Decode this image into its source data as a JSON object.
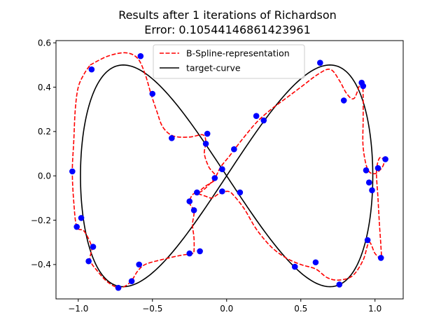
{
  "chart_data": {
    "type": "line",
    "title_line1": "Results after 1 iterations of Richardson",
    "title_line2": "Error: 0.10544146861423961",
    "xlabel": "",
    "ylabel": "",
    "xlim": [
      -1.15,
      1.19
    ],
    "ylim": [
      -0.555,
      0.61
    ],
    "x_ticks": [
      -1.0,
      -0.5,
      0.0,
      0.5,
      1.0
    ],
    "x_tick_labels": [
      "−1.0",
      "−0.5",
      "0.0",
      "0.5",
      "1.0"
    ],
    "y_ticks": [
      -0.4,
      -0.2,
      0.0,
      0.2,
      0.4,
      0.6
    ],
    "y_tick_labels": [
      "−0.4",
      "−0.2",
      "0.0",
      "0.2",
      "0.4",
      "0.6"
    ],
    "grid": false,
    "legend_position": "top-center",
    "colors": {
      "spline": "#ff0000",
      "target": "#000000",
      "points": "#0000ff"
    },
    "series": [
      {
        "name": "B-Spline-representation",
        "style": "dashed",
        "points": [
          [
            -0.92,
            0.5
          ],
          [
            -0.8,
            0.54
          ],
          [
            -0.68,
            0.555
          ],
          [
            -0.6,
            0.53
          ],
          [
            -0.55,
            0.46
          ],
          [
            -0.51,
            0.37
          ],
          [
            -0.47,
            0.29
          ],
          [
            -0.43,
            0.22
          ],
          [
            -0.36,
            0.18
          ],
          [
            -0.25,
            0.175
          ],
          [
            -0.16,
            0.185
          ],
          [
            -0.14,
            0.15
          ],
          [
            -0.15,
            0.1
          ],
          [
            -0.12,
            0.04
          ],
          [
            -0.07,
            -0.01
          ],
          [
            -0.15,
            -0.05
          ],
          [
            -0.2,
            -0.08
          ],
          [
            -0.15,
            -0.06
          ],
          [
            -0.08,
            -0.01
          ],
          [
            -0.04,
            0.04
          ],
          [
            0.02,
            0.09
          ],
          [
            0.1,
            0.16
          ],
          [
            0.2,
            0.24
          ],
          [
            0.3,
            0.3
          ],
          [
            0.4,
            0.35
          ],
          [
            0.5,
            0.4
          ],
          [
            0.62,
            0.46
          ],
          [
            0.7,
            0.48
          ],
          [
            0.76,
            0.43
          ],
          [
            0.81,
            0.37
          ],
          [
            0.86,
            0.35
          ],
          [
            0.91,
            0.43
          ],
          [
            0.92,
            0.36
          ],
          [
            0.92,
            0.25
          ],
          [
            0.92,
            0.13
          ],
          [
            0.95,
            0.03
          ],
          [
            1.0,
            0.01
          ],
          [
            1.05,
            0.04
          ],
          [
            1.06,
            0.07
          ],
          [
            1.03,
            0.08
          ],
          [
            1.01,
            0.02
          ],
          [
            1.02,
            -0.1
          ],
          [
            1.03,
            -0.22
          ],
          [
            1.04,
            -0.32
          ],
          [
            1.04,
            -0.37
          ],
          [
            1.0,
            -0.35
          ],
          [
            0.96,
            -0.3
          ],
          [
            0.92,
            -0.38
          ],
          [
            0.85,
            -0.45
          ],
          [
            0.76,
            -0.47
          ],
          [
            0.68,
            -0.46
          ],
          [
            0.6,
            -0.42
          ],
          [
            0.5,
            -0.4
          ],
          [
            0.4,
            -0.37
          ],
          [
            0.3,
            -0.32
          ],
          [
            0.2,
            -0.24
          ],
          [
            0.12,
            -0.15
          ],
          [
            0.05,
            -0.09
          ],
          [
            0.01,
            -0.07
          ],
          [
            -0.05,
            -0.08
          ],
          [
            -0.1,
            -0.1
          ],
          [
            -0.15,
            -0.09
          ],
          [
            -0.22,
            -0.08
          ],
          [
            -0.25,
            -0.12
          ],
          [
            -0.22,
            -0.16
          ],
          [
            -0.23,
            -0.22
          ],
          [
            -0.22,
            -0.28
          ],
          [
            -0.22,
            -0.34
          ],
          [
            -0.23,
            -0.35
          ],
          [
            -0.32,
            -0.36
          ],
          [
            -0.45,
            -0.38
          ],
          [
            -0.55,
            -0.4
          ],
          [
            -0.6,
            -0.43
          ],
          [
            -0.65,
            -0.48
          ],
          [
            -0.72,
            -0.505
          ],
          [
            -0.8,
            -0.48
          ],
          [
            -0.87,
            -0.43
          ],
          [
            -0.92,
            -0.38
          ],
          [
            -0.91,
            -0.32
          ],
          [
            -0.96,
            -0.25
          ],
          [
            -1.01,
            -0.23
          ],
          [
            -1.03,
            -0.12
          ],
          [
            -1.04,
            0.02
          ],
          [
            -1.03,
            0.16
          ],
          [
            -1.02,
            0.3
          ],
          [
            -1.0,
            0.4
          ],
          [
            -0.96,
            0.46
          ],
          [
            -0.92,
            0.5
          ]
        ]
      },
      {
        "name": "target-curve",
        "style": "solid",
        "parametric": "x = cos(t) / (1 + sin(t)^2), y = sin(t)cos(t) / (1 + sin(t)^2) scaled",
        "samples": 400
      }
    ],
    "scatter": {
      "name": "control points",
      "points": [
        [
          -0.91,
          0.48
        ],
        [
          -0.58,
          0.54
        ],
        [
          -0.5,
          0.37
        ],
        [
          -0.37,
          0.17
        ],
        [
          -0.13,
          0.19
        ],
        [
          -0.14,
          0.145
        ],
        [
          -0.03,
          0.03
        ],
        [
          0.05,
          0.12
        ],
        [
          0.2,
          0.27
        ],
        [
          0.25,
          0.25
        ],
        [
          0.63,
          0.51
        ],
        [
          0.79,
          0.34
        ],
        [
          0.91,
          0.42
        ],
        [
          0.92,
          0.405
        ],
        [
          1.07,
          0.075
        ],
        [
          1.02,
          0.035
        ],
        [
          0.94,
          0.025
        ],
        [
          0.96,
          -0.03
        ],
        [
          0.98,
          -0.065
        ],
        [
          0.95,
          -0.29
        ],
        [
          1.04,
          -0.37
        ],
        [
          0.76,
          -0.49
        ],
        [
          0.6,
          -0.39
        ],
        [
          0.46,
          -0.41
        ],
        [
          0.09,
          -0.075
        ],
        [
          -0.03,
          -0.07
        ],
        [
          -0.08,
          -0.01
        ],
        [
          -0.2,
          -0.075
        ],
        [
          -0.22,
          -0.155
        ],
        [
          -0.25,
          -0.115
        ],
        [
          -0.18,
          -0.34
        ],
        [
          -0.25,
          -0.35
        ],
        [
          -0.59,
          -0.4
        ],
        [
          -0.64,
          -0.475
        ],
        [
          -0.73,
          -0.505
        ],
        [
          -0.93,
          -0.385
        ],
        [
          -0.9,
          -0.32
        ],
        [
          -0.98,
          -0.19
        ],
        [
          -1.01,
          -0.23
        ],
        [
          -1.04,
          0.02
        ]
      ]
    }
  }
}
